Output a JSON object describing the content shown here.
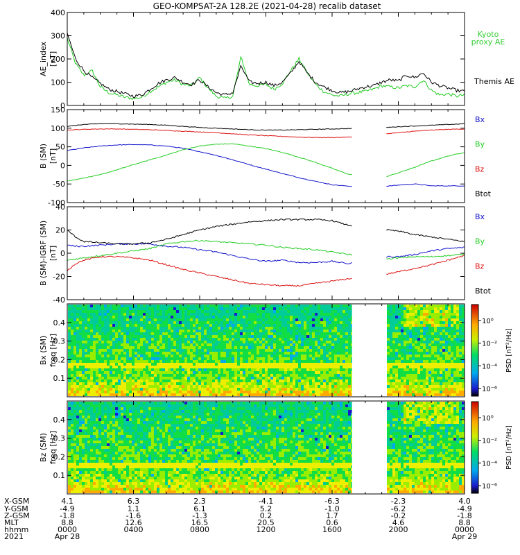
{
  "title": "GEO-KOMPSAT-2A 128.2E (2021-04-28) recalib dataset",
  "colors": {
    "black": "#000000",
    "green": "#22cc22",
    "red": "#dd1111",
    "blue": "#1111cc",
    "legend_green": "#33cc33"
  },
  "chart_data": [
    {
      "id": "ae",
      "type": "line",
      "ylabel": "AE_index",
      "ylabel_unit": "[nT]",
      "ylim": [
        0,
        400
      ],
      "yticks": [
        0,
        100,
        200,
        300,
        400
      ],
      "x_hours": [
        0,
        0.5,
        1,
        1.5,
        2,
        2.5,
        3,
        3.5,
        4,
        4.5,
        5,
        5.5,
        6,
        6.5,
        7,
        7.5,
        8,
        8.5,
        9,
        9.5,
        10,
        10.5,
        11,
        11.5,
        12,
        12.5,
        13,
        13.5,
        14,
        14.5,
        15,
        15.5,
        16,
        16.5,
        17,
        17.5,
        18,
        18.5,
        19,
        19.5,
        20,
        20.5,
        21,
        21.5,
        22,
        22.5,
        23,
        23.5,
        24
      ],
      "series": [
        {
          "name": "Kyoto proxy AE",
          "color_key": "green",
          "values": [
            290,
            180,
            130,
            150,
            80,
            55,
            45,
            35,
            30,
            35,
            60,
            80,
            100,
            110,
            90,
            85,
            120,
            75,
            40,
            30,
            40,
            210,
            90,
            85,
            90,
            70,
            95,
            150,
            200,
            140,
            90,
            60,
            45,
            40,
            50,
            55,
            60,
            70,
            85,
            80,
            75,
            85,
            80,
            110,
            65,
            45,
            50,
            40,
            45
          ]
        },
        {
          "name": "Themis AE",
          "color_key": "black",
          "values": [
            310,
            200,
            150,
            120,
            95,
            70,
            60,
            50,
            40,
            45,
            70,
            95,
            110,
            120,
            100,
            90,
            110,
            80,
            55,
            45,
            55,
            170,
            100,
            95,
            100,
            85,
            100,
            140,
            190,
            140,
            100,
            80,
            65,
            55,
            60,
            70,
            80,
            85,
            100,
            110,
            105,
            130,
            120,
            140,
            100,
            85,
            75,
            65,
            60
          ]
        }
      ]
    },
    {
      "id": "bsm",
      "type": "line",
      "ylabel": "B (SM)",
      "ylabel_unit": "[nT]",
      "ylim": [
        -100,
        150
      ],
      "yticks": [
        -100,
        -50,
        0,
        50,
        100,
        150
      ],
      "gap_hours": [
        17.2,
        19.2
      ],
      "x_hours": [
        0,
        1,
        2,
        3,
        4,
        5,
        6,
        7,
        8,
        9,
        10,
        11,
        12,
        13,
        14,
        15,
        16,
        17,
        19.3,
        20,
        21,
        22,
        23,
        24
      ],
      "series": [
        {
          "name": "Bx",
          "color_key": "blue",
          "values": [
            40,
            47,
            52,
            55,
            56,
            55,
            52,
            46,
            37,
            27,
            15,
            2,
            -10,
            -22,
            -33,
            -43,
            -52,
            -56,
            -56,
            -53,
            -50,
            -55,
            -55,
            -55
          ]
        },
        {
          "name": "By",
          "color_key": "green",
          "values": [
            -42,
            -34,
            -25,
            -12,
            2,
            15,
            28,
            42,
            52,
            57,
            58,
            52,
            45,
            35,
            22,
            8,
            -8,
            -24,
            -30,
            -20,
            -5,
            12,
            25,
            35
          ]
        },
        {
          "name": "Bz",
          "color_key": "red",
          "values": [
            95,
            97,
            98,
            98,
            97,
            96,
            94,
            92,
            90,
            88,
            85,
            82,
            80,
            78,
            76,
            75,
            75,
            76,
            85,
            88,
            92,
            95,
            97,
            98
          ]
        },
        {
          "name": "Btot",
          "color_key": "black",
          "values": [
            105,
            110,
            112,
            112,
            111,
            110,
            108,
            105,
            102,
            100,
            98,
            96,
            95,
            95,
            96,
            97,
            98,
            99,
            102,
            104,
            106,
            108,
            110,
            112
          ]
        }
      ]
    },
    {
      "id": "digrf",
      "type": "line",
      "ylabel": "B (SM)-IGRF (SM)",
      "ylabel_unit": "[nT]",
      "ylim": [
        -40,
        40
      ],
      "yticks": [
        -40,
        -20,
        0,
        20,
        40
      ],
      "gap_hours": [
        17.2,
        19.2
      ],
      "x_hours": [
        0,
        0.5,
        1,
        2,
        3,
        4,
        5,
        6,
        7,
        8,
        9,
        10,
        11,
        12,
        13,
        14,
        15,
        16,
        17,
        19.3,
        20,
        21,
        22,
        23,
        24
      ],
      "series": [
        {
          "name": "Bx",
          "color_key": "blue",
          "values": [
            7,
            6,
            6,
            7,
            8,
            8,
            8,
            6,
            5,
            3,
            1,
            -2,
            -5,
            -7,
            -6,
            -8,
            -8,
            -7,
            -9,
            -3,
            -3,
            -1,
            2,
            4,
            5
          ]
        },
        {
          "name": "By",
          "color_key": "green",
          "values": [
            -6,
            -5,
            -4,
            -2,
            0,
            2,
            4,
            8,
            10,
            11,
            10,
            9,
            8,
            7,
            5,
            4,
            3,
            1,
            -1,
            -5,
            -4,
            -3,
            -3,
            -2,
            -1
          ]
        },
        {
          "name": "Bz",
          "color_key": "red",
          "values": [
            -15,
            -9,
            -6,
            -3,
            -3,
            -4,
            -6,
            -10,
            -14,
            -17,
            -20,
            -23,
            -26,
            -27,
            -28,
            -28,
            -26,
            -24,
            -22,
            -18,
            -16,
            -13,
            -10,
            -6,
            -2
          ]
        },
        {
          "name": "Btot",
          "color_key": "black",
          "values": [
            20,
            14,
            10,
            9,
            8,
            8,
            9,
            12,
            16,
            20,
            23,
            25,
            27,
            28,
            29,
            29,
            29,
            28,
            24,
            20,
            19,
            16,
            14,
            12,
            10
          ]
        }
      ]
    },
    {
      "id": "bx_spec",
      "type": "heatmap",
      "ylabel": "Bx (SM)",
      "ylabel_unit": "freq [Hz]",
      "yticks": [
        0.1,
        0.2,
        0.3,
        0.4
      ],
      "ylim": [
        0,
        0.5
      ],
      "gap_hours": [
        17.2,
        19.2
      ],
      "line_hz": 0.17,
      "colorbar_label": "PSD [nT²/Hz]",
      "colorbar_ticks": [
        "10⁰",
        "10⁻²",
        "10⁻⁴",
        "10⁻⁶"
      ]
    },
    {
      "id": "bz_spec",
      "type": "heatmap",
      "ylabel": "Bz (SM)",
      "ylabel_unit": "freq [Hz]",
      "yticks": [
        0.1,
        0.2,
        0.3,
        0.4
      ],
      "ylim": [
        0,
        0.5
      ],
      "gap_hours": [
        17.2,
        19.2
      ],
      "line_hz": 0.165,
      "colorbar_label": "PSD [nT²/Hz]",
      "colorbar_ticks": [
        "10⁰",
        "10⁻²",
        "10⁻⁴",
        "10⁻⁶"
      ]
    }
  ],
  "ephemeris": {
    "row_labels": [
      "X-GSM",
      "Y-GSM",
      "Z-GSM",
      "MLT",
      "hhmm",
      "2021"
    ],
    "x_hours": [
      0,
      4,
      8,
      12,
      16,
      20,
      24
    ],
    "columns": [
      [
        "4.1",
        "-4.9",
        "-1.8",
        "8.8",
        "0000",
        "Apr 28"
      ],
      [
        "6.3",
        "1.1",
        "-1.6",
        "12.6",
        "0400",
        ""
      ],
      [
        "2.3",
        "6.1",
        "-1.3",
        "16.5",
        "0800",
        ""
      ],
      [
        "-4.1",
        "5.2",
        "0.2",
        "20.5",
        "1200",
        ""
      ],
      [
        "-6.3",
        "-1.0",
        "1.7",
        "0.6",
        "1600",
        ""
      ],
      [
        "-2.3",
        "-6.2",
        "-0.2",
        "4.6",
        "2000",
        ""
      ],
      [
        "4.0",
        "-4.9",
        "-1.8",
        "8.8",
        "0000",
        "Apr 29"
      ]
    ]
  }
}
